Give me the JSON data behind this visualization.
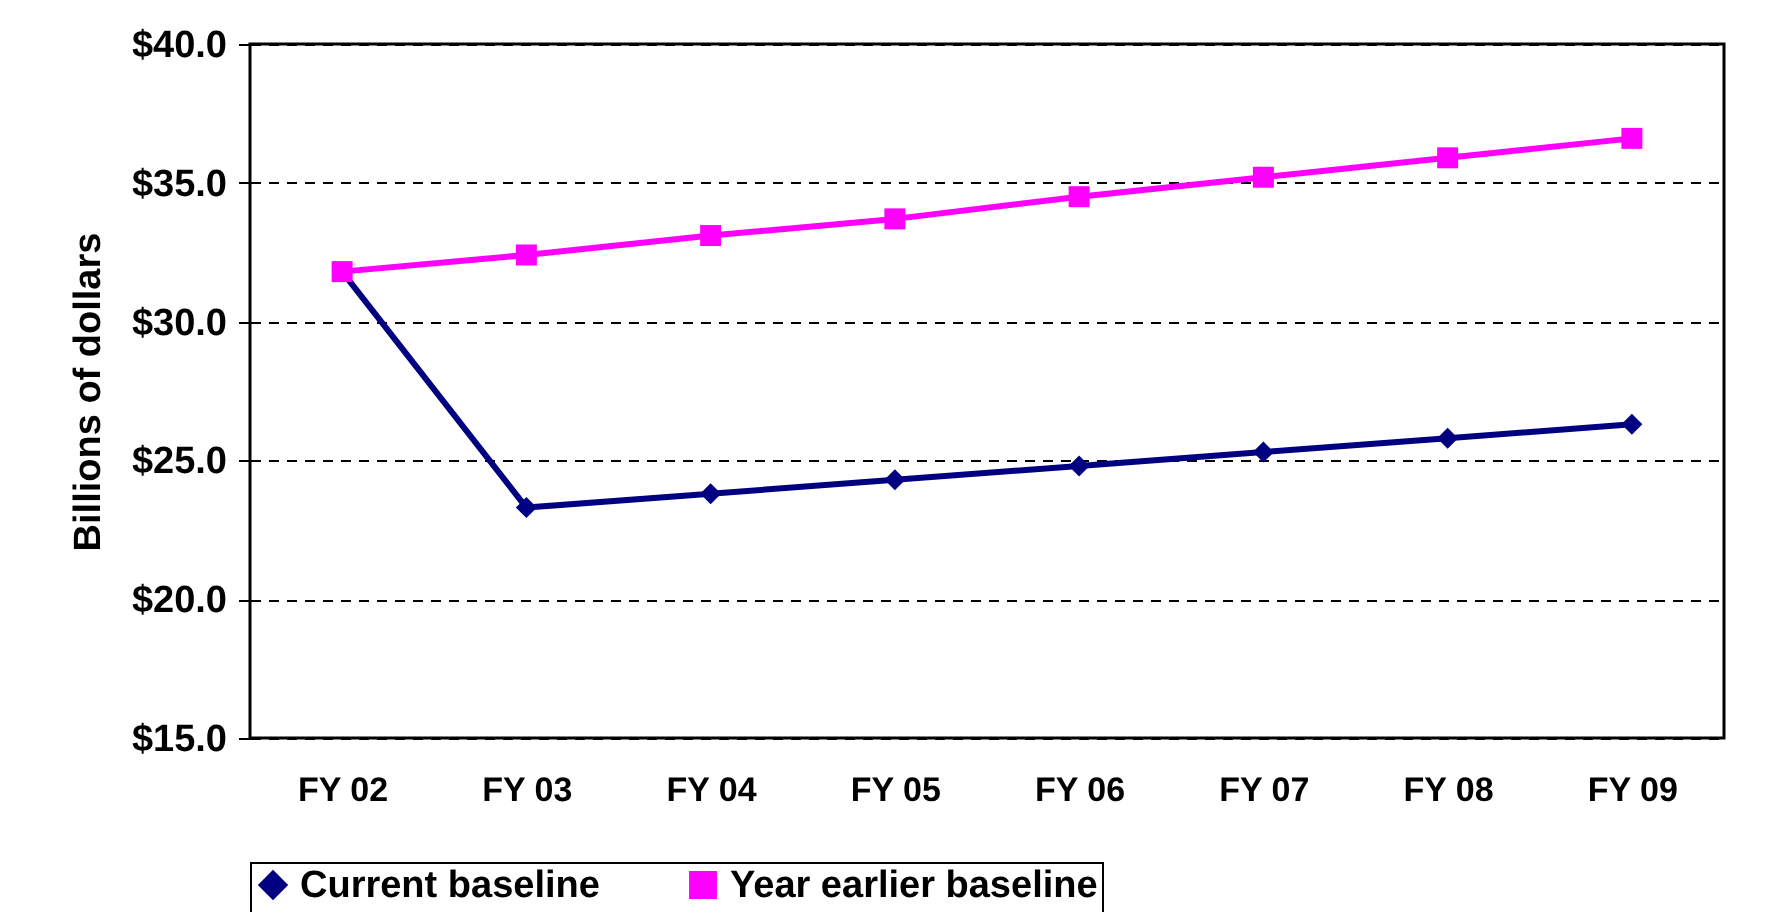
{
  "chart_data": {
    "type": "line",
    "ylabel": "Billions of dollars",
    "categories": [
      "FY 02",
      "FY 03",
      "FY 04",
      "FY 05",
      "FY 06",
      "FY 07",
      "FY 08",
      "FY 09"
    ],
    "series": [
      {
        "name": "Current baseline",
        "color": "#000080",
        "marker": "diamond",
        "values": [
          31.8,
          23.3,
          23.8,
          24.3,
          24.8,
          25.3,
          25.8,
          26.3
        ]
      },
      {
        "name": "Year earlier baseline",
        "color": "#ff00ff",
        "marker": "square",
        "values": [
          31.8,
          32.4,
          33.1,
          33.7,
          34.5,
          35.2,
          35.9,
          36.6
        ]
      }
    ],
    "ylim": [
      15,
      40
    ],
    "yticks": [
      {
        "value": 15,
        "label": "$15.0"
      },
      {
        "value": 20,
        "label": "$20.0"
      },
      {
        "value": 25,
        "label": "$25.0"
      },
      {
        "value": 30,
        "label": "$30.0"
      },
      {
        "value": 35,
        "label": "$35.0"
      },
      {
        "value": 40,
        "label": "$40.0"
      }
    ],
    "grid": "y",
    "legend": "bottom"
  }
}
